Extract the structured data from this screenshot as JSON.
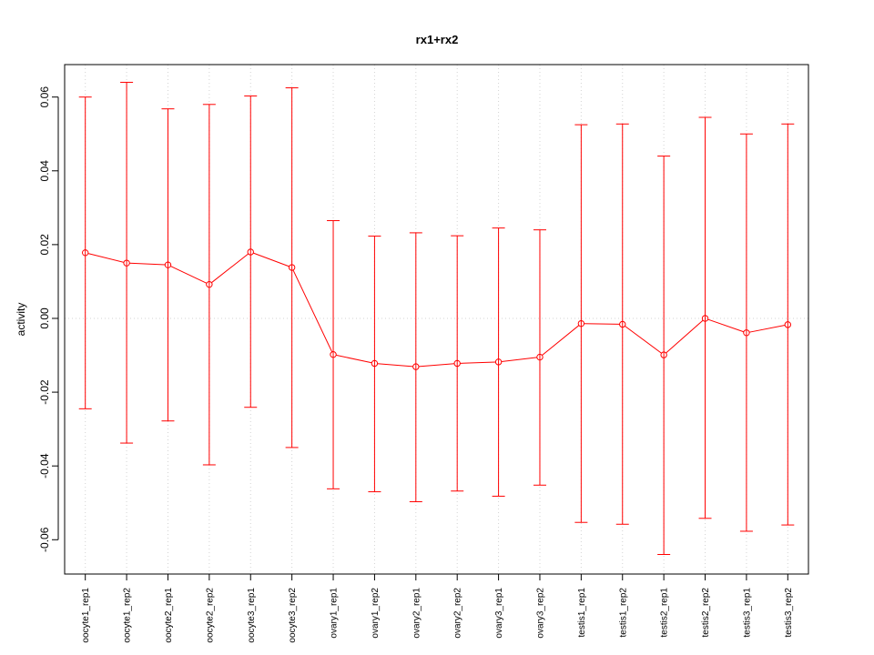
{
  "chart_data": {
    "type": "line",
    "title": "rx1+rx2",
    "xlabel": "",
    "ylabel": "activity",
    "categories": [
      "oocyte1_rep1",
      "oocyte1_rep2",
      "oocyte2_rep1",
      "oocyte2_rep2",
      "oocyte3_rep1",
      "oocyte3_rep2",
      "ovary1_rep1",
      "ovary1_rep2",
      "ovary2_rep1",
      "ovary2_rep2",
      "ovary3_rep1",
      "ovary3_rep2",
      "testis1_rep1",
      "testis1_rep2",
      "testis2_rep1",
      "testis2_rep2",
      "testis3_rep1",
      "testis3_rep2"
    ],
    "series": [
      {
        "values": [
          0.0178,
          0.015,
          0.0145,
          0.0092,
          0.018,
          0.0138,
          -0.0098,
          -0.0122,
          -0.0131,
          -0.0122,
          -0.0118,
          -0.0105,
          -0.0014,
          -0.0016,
          -0.0099,
          0.0,
          -0.0039,
          -0.0017
        ],
        "upper": [
          0.06,
          0.064,
          0.0568,
          0.058,
          0.0603,
          0.0625,
          0.0265,
          0.0223,
          0.0232,
          0.0224,
          0.0245,
          0.024,
          0.0525,
          0.0527,
          0.044,
          0.0545,
          0.05,
          0.0527
        ],
        "lower": [
          -0.0245,
          -0.0338,
          -0.0278,
          -0.0397,
          -0.0241,
          -0.035,
          -0.0462,
          -0.047,
          -0.0497,
          -0.0468,
          -0.0482,
          -0.0452,
          -0.0553,
          -0.0558,
          -0.064,
          -0.0542,
          -0.0577,
          -0.056
        ]
      }
    ],
    "yticks": [
      "-0.06",
      "-0.04",
      "-0.02",
      "0.00",
      "0.02",
      "0.04",
      "0.06"
    ],
    "ytick_values": [
      -0.06,
      -0.04,
      -0.02,
      0.0,
      0.02,
      0.04,
      0.06
    ],
    "ylim": [
      -0.0693,
      0.0688
    ],
    "grid": true,
    "colors": {
      "series": "#ff0000",
      "grid": "#d3d3d3",
      "axis": "#000000"
    }
  }
}
